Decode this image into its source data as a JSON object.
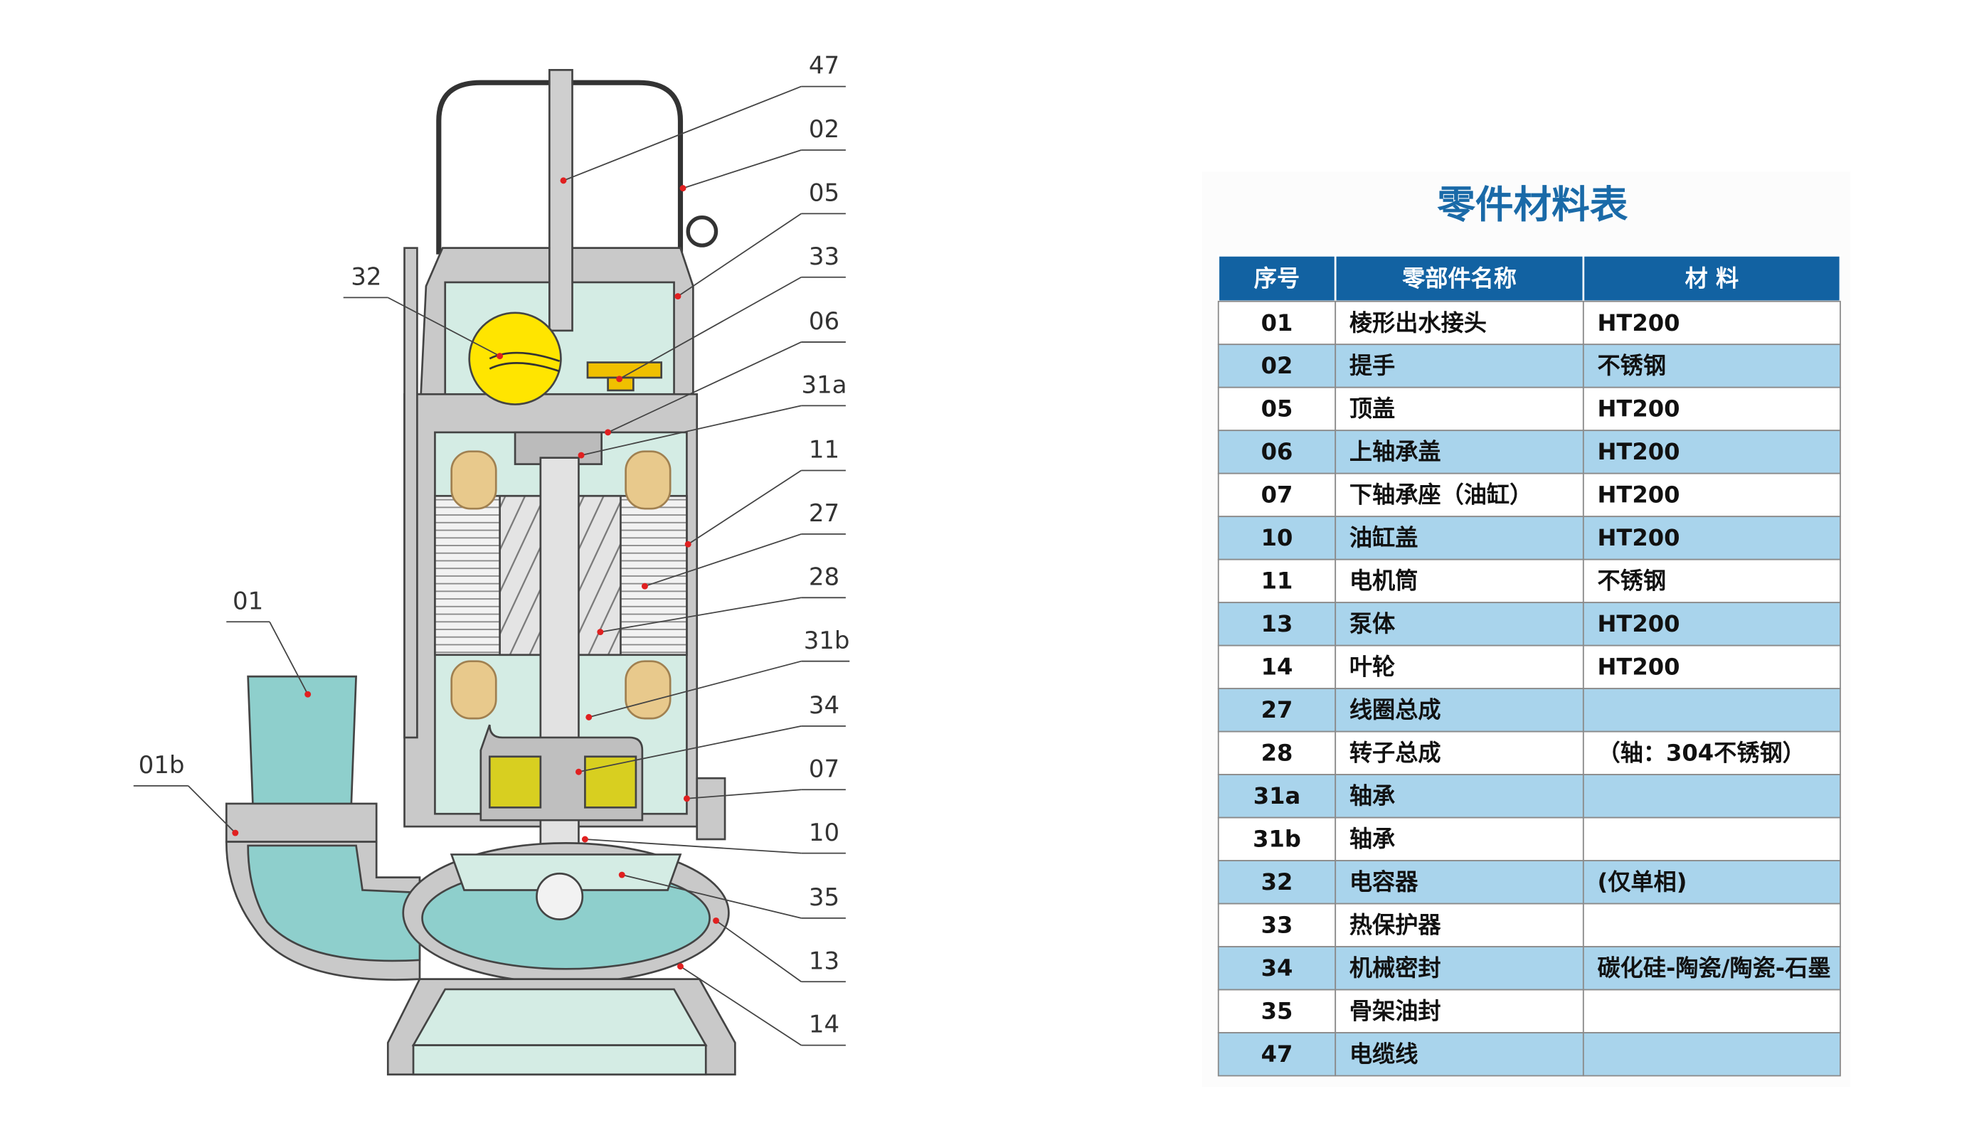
{
  "callouts": [
    {
      "label": "47"
    },
    {
      "label": "02"
    },
    {
      "label": "05"
    },
    {
      "label": "33"
    },
    {
      "label": "06"
    },
    {
      "label": "31a"
    },
    {
      "label": "11"
    },
    {
      "label": "27"
    },
    {
      "label": "28"
    },
    {
      "label": "31b"
    },
    {
      "label": "34"
    },
    {
      "label": "07"
    },
    {
      "label": "10"
    },
    {
      "label": "35"
    },
    {
      "label": "13"
    },
    {
      "label": "14"
    },
    {
      "label": "32"
    },
    {
      "label": "01"
    },
    {
      "label": "01b"
    }
  ],
  "table": {
    "title": "零件材料表",
    "headers": [
      "序号",
      "零部件名称",
      "材 料"
    ],
    "rows": [
      [
        "01",
        "棱形出水接头",
        "HT200"
      ],
      [
        "02",
        "提手",
        "不锈钢"
      ],
      [
        "05",
        "顶盖",
        "HT200"
      ],
      [
        "06",
        "上轴承盖",
        "HT200"
      ],
      [
        "07",
        "下轴承座（油缸）",
        "HT200"
      ],
      [
        "10",
        "油缸盖",
        "HT200"
      ],
      [
        "11",
        "电机筒",
        "不锈钢"
      ],
      [
        "13",
        "泵体",
        "HT200"
      ],
      [
        "14",
        "叶轮",
        "HT200"
      ],
      [
        "27",
        "线圈总成"
      ],
      [
        "28",
        "转子总成",
        "（轴：304不锈钢）"
      ],
      [
        "31a",
        "轴承"
      ],
      [
        "31b",
        "轴承"
      ],
      [
        "32",
        "电容器",
        "(仅单相)"
      ],
      [
        "33",
        "热保护器"
      ],
      [
        "34",
        "机械密封",
        "碳化硅-陶瓷/陶瓷-石墨"
      ],
      [
        "35",
        "骨架油封"
      ],
      [
        "47",
        "电缆线"
      ]
    ]
  }
}
